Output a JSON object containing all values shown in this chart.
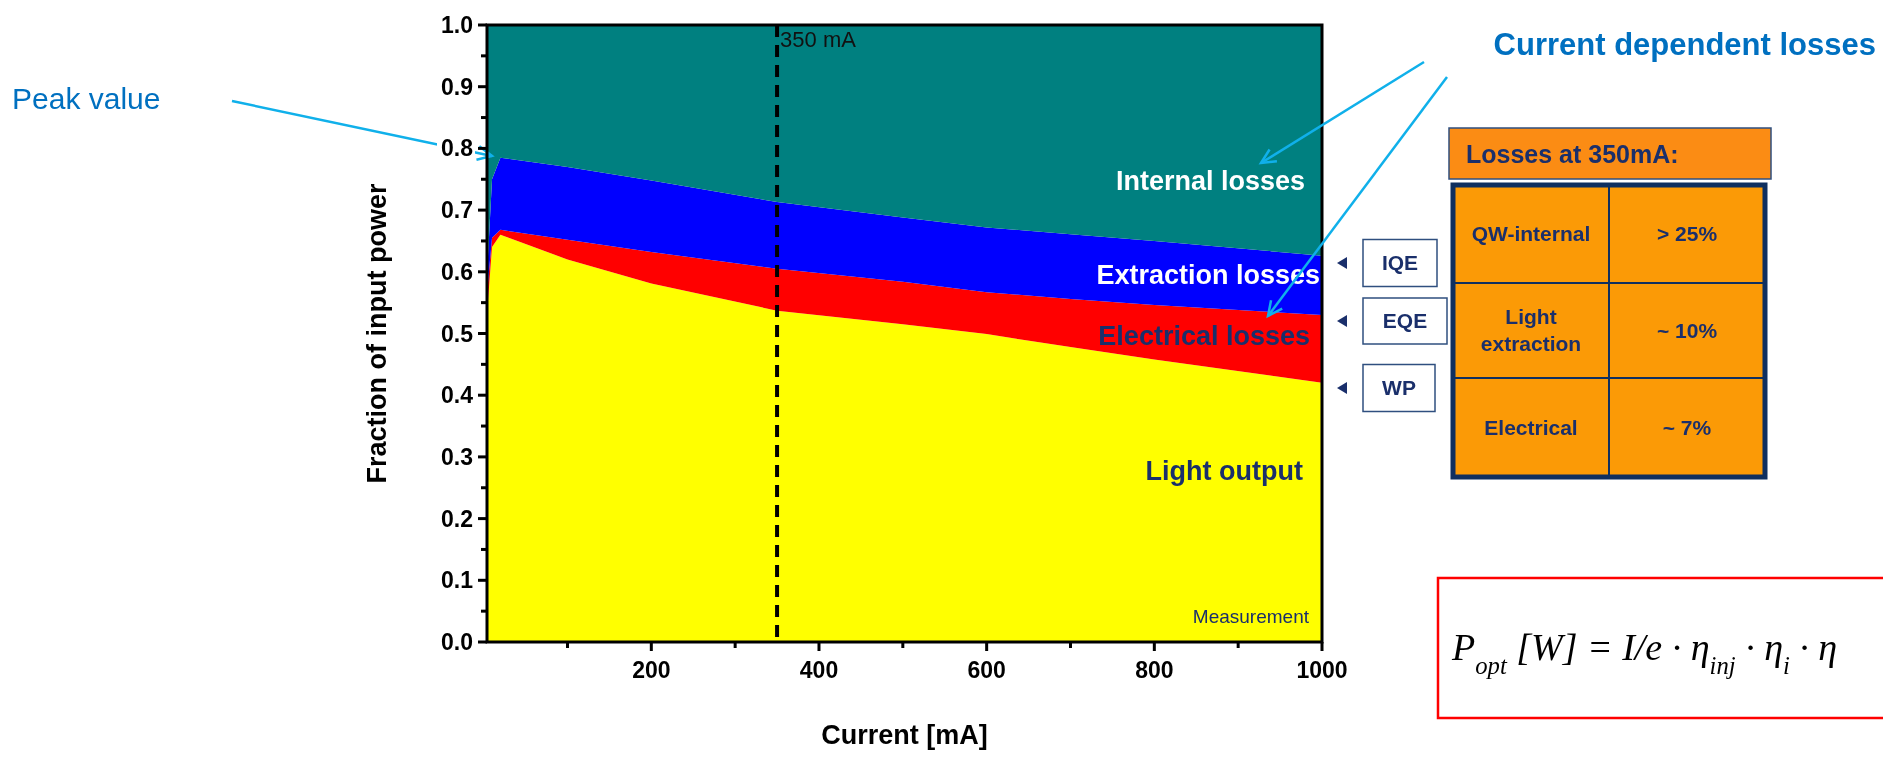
{
  "chart_data": {
    "type": "area",
    "stacked": true,
    "xlabel": "Current [mA]",
    "ylabel": "Fraction of input power",
    "x": [
      5,
      10,
      20,
      100,
      200,
      350,
      500,
      600,
      700,
      800,
      1000
    ],
    "series": [
      {
        "name": "Light output",
        "color": "#ffff00",
        "values": [
          0.55,
          0.64,
          0.66,
          0.62,
          0.581,
          0.537,
          0.515,
          0.499,
          0.478,
          0.458,
          0.42
        ]
      },
      {
        "name": "Electrical losses",
        "color": "#ff0000",
        "values": [
          0.03,
          0.015,
          0.008,
          0.032,
          0.051,
          0.068,
          0.069,
          0.068,
          0.078,
          0.088,
          0.11
        ]
      },
      {
        "name": "Extraction losses",
        "color": "#0000ff",
        "values": [
          0.04,
          0.095,
          0.117,
          0.118,
          0.116,
          0.108,
          0.104,
          0.105,
          0.105,
          0.104,
          0.096
        ]
      },
      {
        "name": "Internal losses",
        "color": "#008080",
        "values": [
          0.38,
          0.25,
          0.215,
          0.23,
          0.252,
          0.287,
          0.312,
          0.328,
          0.339,
          0.35,
          0.374
        ]
      }
    ],
    "xlim": [
      4,
      1000
    ],
    "xticks": [
      {
        "value": 100,
        "label": null
      },
      200,
      {
        "value": 300,
        "label": null
      },
      400,
      {
        "value": 500,
        "label": null
      },
      600,
      {
        "value": 700,
        "label": null
      },
      800,
      {
        "value": 900,
        "label": null
      },
      1000
    ],
    "ylim": [
      0,
      1
    ],
    "yticks": [
      {
        "value": 0,
        "label": "0.0"
      },
      {
        "value": 0.05,
        "label": null
      },
      0.1,
      {
        "value": 0.15,
        "label": null
      },
      0.2,
      {
        "value": 0.25,
        "label": null
      },
      0.3,
      {
        "value": 0.35,
        "label": null
      },
      0.4,
      {
        "value": 0.45,
        "label": null
      },
      0.5,
      {
        "value": 0.55,
        "label": null
      },
      0.6,
      {
        "value": 0.65,
        "label": null
      },
      0.7,
      {
        "value": 0.75,
        "label": null
      },
      0.8,
      {
        "value": 0.85,
        "label": null
      },
      0.9,
      {
        "value": 0.95,
        "label": null
      },
      {
        "value": 1,
        "label": "1.0"
      }
    ],
    "ref_lines": [
      {
        "axis": "x",
        "value": 350,
        "label": "350 mA",
        "color": "#000000",
        "line_style": "dashed"
      }
    ],
    "grid": false,
    "annotations": [
      "Peak value",
      "Current dependent losses",
      "Measurement",
      "IQE",
      "EQE",
      "WP",
      "Losses at 350mA:",
      "QW-internal",
      "> 25%",
      "Light extraction",
      "~ 10%",
      "Electrical",
      "~ 7%",
      "P$_{opt}$ [W] = I/e · η$_{inj}$ · η$_{i}$ · η"
    ]
  }
}
